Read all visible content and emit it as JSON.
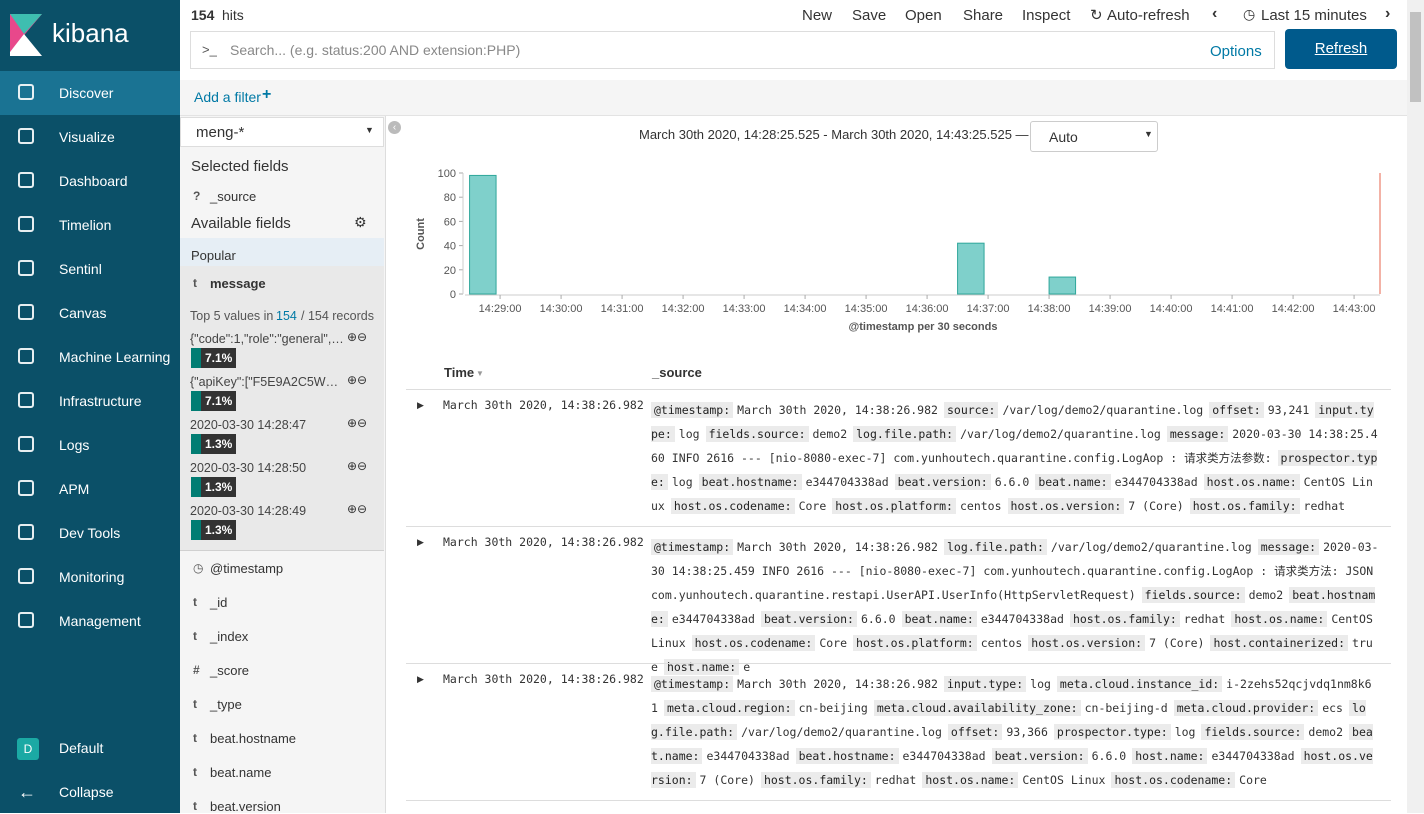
{
  "sidebar": {
    "logo": "kibana",
    "nav": [
      "Discover",
      "Visualize",
      "Dashboard",
      "Timelion",
      "Sentinl",
      "Canvas",
      "Machine Learning",
      "Infrastructure",
      "Logs",
      "APM",
      "Dev Tools",
      "Monitoring",
      "Management"
    ],
    "space_badge": "D",
    "space": "Default",
    "collapse": "Collapse"
  },
  "topbar": {
    "hits_count": "154",
    "hits_label": "hits",
    "menu": [
      "New",
      "Save",
      "Open",
      "Share",
      "Inspect"
    ],
    "auto_refresh": "Auto-refresh",
    "time_range": "Last 15 minutes",
    "search_prompt": ">_",
    "search_placeholder": "Search... (e.g. status:200 AND extension:PHP)",
    "options": "Options",
    "refresh": "Refresh",
    "add_filter": "Add a filter"
  },
  "fields_panel": {
    "index_pattern": "meng-*",
    "selected_title": "Selected fields",
    "selected": [
      {
        "type": "?",
        "name": "_source"
      }
    ],
    "available_title": "Available fields",
    "popular_title": "Popular",
    "popular_field": {
      "type": "t",
      "name": "message"
    },
    "top5_prefix": "Top 5 values in",
    "top5_count": "154",
    "top5_suffix": "/ 154 records",
    "top5": [
      {
        "label": "{\"code\":1,\"role\":\"general\",\"...",
        "percent": "7.1%"
      },
      {
        "label": "{\"apiKey\":[\"F5E9A2C5WU0...",
        "percent": "7.1%"
      },
      {
        "label": "2020-03-30 14:28:47",
        "percent": "1.3%"
      },
      {
        "label": "2020-03-30 14:28:50",
        "percent": "1.3%"
      },
      {
        "label": "2020-03-30 14:28:49",
        "percent": "1.3%"
      }
    ],
    "fields": [
      {
        "type": "clock",
        "name": "@timestamp"
      },
      {
        "type": "t",
        "name": "_id"
      },
      {
        "type": "t",
        "name": "_index"
      },
      {
        "type": "#",
        "name": "_score"
      },
      {
        "type": "t",
        "name": "_type"
      },
      {
        "type": "t",
        "name": "beat.hostname"
      },
      {
        "type": "t",
        "name": "beat.name"
      },
      {
        "type": "t",
        "name": "beat.version"
      }
    ]
  },
  "histogram": {
    "range_text": "March 30th 2020, 14:28:25.525 - March 30th 2020, 14:43:25.525 —",
    "interval": "Auto",
    "ylabel": "Count",
    "xlabel": "@timestamp per 30 seconds",
    "x": [
      868.5,
      876.5,
      878
    ],
    "values": [
      98,
      42,
      14
    ],
    "color": "#7fd0cb",
    "ylim": [
      0,
      100
    ],
    "yticks": [
      0,
      20,
      40,
      60,
      80,
      100
    ],
    "xlim": [
      868.425,
      883.425
    ],
    "xticks": [
      {
        "value": 869,
        "label": "14:29:00"
      },
      {
        "value": 870,
        "label": "14:30:00"
      },
      {
        "value": 871,
        "label": "14:31:00"
      },
      {
        "value": 872,
        "label": "14:32:00"
      },
      {
        "value": 873,
        "label": "14:33:00"
      },
      {
        "value": 874,
        "label": "14:34:00"
      },
      {
        "value": 875,
        "label": "14:35:00"
      },
      {
        "value": 876,
        "label": "14:36:00"
      },
      {
        "value": 877,
        "label": "14:37:00"
      },
      {
        "value": 878,
        "label": "14:38:00"
      },
      {
        "value": 879,
        "label": "14:39:00"
      },
      {
        "value": 880,
        "label": "14:40:00"
      },
      {
        "value": 881,
        "label": "14:41:00"
      },
      {
        "value": 882,
        "label": "14:42:00"
      },
      {
        "value": 883,
        "label": "14:43:00"
      }
    ]
  },
  "table": {
    "headers": [
      "Time",
      "_source"
    ],
    "rows": [
      {
        "time": "March 30th 2020, 14:38:26.982",
        "source": [
          [
            "@timestamp:",
            "March 30th 2020, 14:38:26.982"
          ],
          [
            "source:",
            "/var/log/demo2/quarantine.log"
          ],
          [
            "offset:",
            "93,241"
          ],
          [
            "input.type:",
            "log"
          ],
          [
            "fields.source:",
            "demo2"
          ],
          [
            "log.file.path:",
            "/var/log/demo2/quarantine.log"
          ],
          [
            "message:",
            "2020-03-30 14:38:25.460 INFO 2616 --- [nio-8080-exec-7] com.yunhoutech.quarantine.config.LogAop : 请求类方法参数:"
          ],
          [
            "prospector.type:",
            "log"
          ],
          [
            "beat.hostname:",
            "e344704338ad"
          ],
          [
            "beat.version:",
            "6.6.0"
          ],
          [
            "beat.name:",
            "e344704338ad"
          ],
          [
            "host.os.name:",
            "CentOS Linux"
          ],
          [
            "host.os.codename:",
            "Core"
          ],
          [
            "host.os.platform:",
            "centos"
          ],
          [
            "host.os.version:",
            "7 (Core)"
          ],
          [
            "host.os.family:",
            "redhat"
          ]
        ]
      },
      {
        "time": "March 30th 2020, 14:38:26.982",
        "source": [
          [
            "@timestamp:",
            "March 30th 2020, 14:38:26.982"
          ],
          [
            "log.file.path:",
            "/var/log/demo2/quarantine.log"
          ],
          [
            "message:",
            "2020-03-30 14:38:25.459 INFO 2616 --- [nio-8080-exec-7] com.yunhoutech.quarantine.config.LogAop : 请求类方法: JSON com.yunhoutech.quarantine.restapi.UserAPI.UserInfo(HttpServletRequest)"
          ],
          [
            "fields.source:",
            "demo2"
          ],
          [
            "beat.hostname:",
            "e344704338ad"
          ],
          [
            "beat.version:",
            "6.6.0"
          ],
          [
            "beat.name:",
            "e344704338ad"
          ],
          [
            "host.os.family:",
            "redhat"
          ],
          [
            "host.os.name:",
            "CentOS Linux"
          ],
          [
            "host.os.codename:",
            "Core"
          ],
          [
            "host.os.platform:",
            "centos"
          ],
          [
            "host.os.version:",
            "7 (Core)"
          ],
          [
            "host.containerized:",
            "true"
          ],
          [
            "host.name:",
            "e"
          ]
        ]
      },
      {
        "time": "March 30th 2020, 14:38:26.982",
        "source": [
          [
            "@timestamp:",
            "March 30th 2020, 14:38:26.982"
          ],
          [
            "input.type:",
            "log"
          ],
          [
            "meta.cloud.instance_id:",
            "i-2zehs52qcjvdq1nm8k61"
          ],
          [
            "meta.cloud.region:",
            "cn-beijing"
          ],
          [
            "meta.cloud.availability_zone:",
            "cn-beijing-d"
          ],
          [
            "meta.cloud.provider:",
            "ecs"
          ],
          [
            "log.file.path:",
            "/var/log/demo2/quarantine.log"
          ],
          [
            "offset:",
            "93,366"
          ],
          [
            "prospector.type:",
            "log"
          ],
          [
            "fields.source:",
            "demo2"
          ],
          [
            "beat.name:",
            "e344704338ad"
          ],
          [
            "beat.hostname:",
            "e344704338ad"
          ],
          [
            "beat.version:",
            "6.6.0"
          ],
          [
            "host.name:",
            "e344704338ad"
          ],
          [
            "host.os.version:",
            "7 (Core)"
          ],
          [
            "host.os.family:",
            "redhat"
          ],
          [
            "host.os.name:",
            "CentOS Linux"
          ],
          [
            "host.os.codename:",
            "Core"
          ]
        ]
      }
    ]
  }
}
